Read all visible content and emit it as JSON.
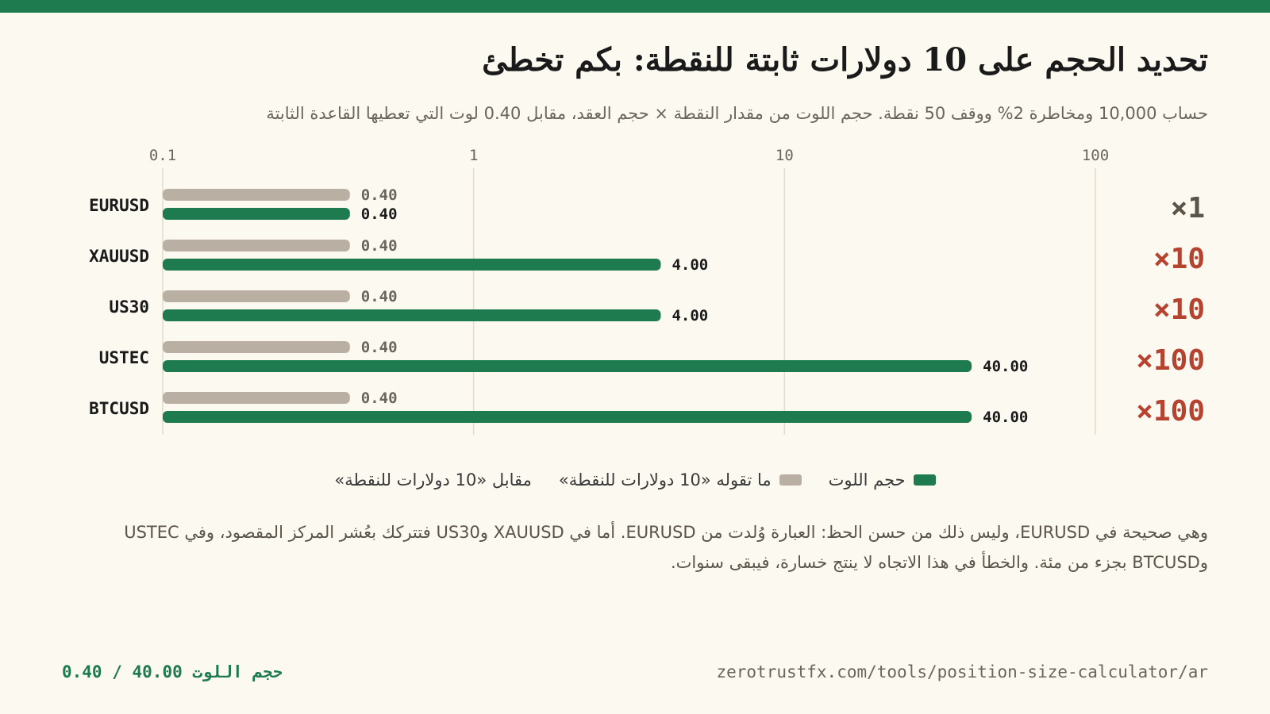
{
  "header": {
    "title": "تحديد الحجم على 10 دولارات ثابتة للنقطة: بكم تخطئ",
    "subtitle": "حساب 10,000 ومخاطرة 2% ووقف 50 نقطة. حجم اللوت من مقدار النقطة × حجم العقد، مقابل 0.40 لوت التي تعطيها القاعدة الثابتة"
  },
  "colors": {
    "accent": "#1e7a4f",
    "fixed_bar": "#b9b0a3",
    "multiplier_red": "#b5432f",
    "multiplier_neutral": "#5a5449",
    "background": "#fcf9f1",
    "grid": "#e2dccc"
  },
  "chart_data": {
    "type": "bar",
    "orientation": "horizontal",
    "x_scale": "log",
    "xlim": [
      0.1,
      100
    ],
    "x_ticks": [
      "0.1",
      "1",
      "10",
      "100"
    ],
    "categories": [
      "EURUSD",
      "XAUUSD",
      "US30",
      "USTEC",
      "BTCUSD"
    ],
    "series": [
      {
        "name": "ما تقوله «10 دولارات للنقطة»",
        "values": [
          0.4,
          0.4,
          0.4,
          0.4,
          0.4
        ],
        "labels": [
          "0.40",
          "0.40",
          "0.40",
          "0.40",
          "0.40"
        ]
      },
      {
        "name": "حجم اللوت",
        "values": [
          0.4,
          4.0,
          4.0,
          40.0,
          40.0
        ],
        "labels": [
          "0.40",
          "4.00",
          "4.00",
          "40.00",
          "40.00"
        ]
      }
    ],
    "multipliers": [
      "×1",
      "×10",
      "×10",
      "×100",
      "×100"
    ],
    "legend_position": "bottom-center",
    "grid": true
  },
  "legend": {
    "items": [
      {
        "label": "حجم اللوت",
        "color": "#1e7a4f"
      },
      {
        "label": "ما تقوله «10 دولارات للنقطة»",
        "color": "#b9b0a3"
      },
      {
        "label": "مقابل «10 دولارات للنقطة»",
        "color": ""
      }
    ]
  },
  "note": {
    "text": "وهي صحيحة في EURUSD، وليس ذلك من حسن الحظ: العبارة وُلدت من EURUSD. أما في XAUUSD وUS30 فتتركك بعُشر المركز المقصود، وفي USTEC وBTCUSD بجزء من مئة. والخطأ في هذا الاتجاه لا ينتج خسارة، فيبقى سنوات."
  },
  "footer": {
    "stat": "حجم اللوت 40.00 / 0.40",
    "url": "zerotrustfx.com/tools/position-size-calculator/ar"
  }
}
